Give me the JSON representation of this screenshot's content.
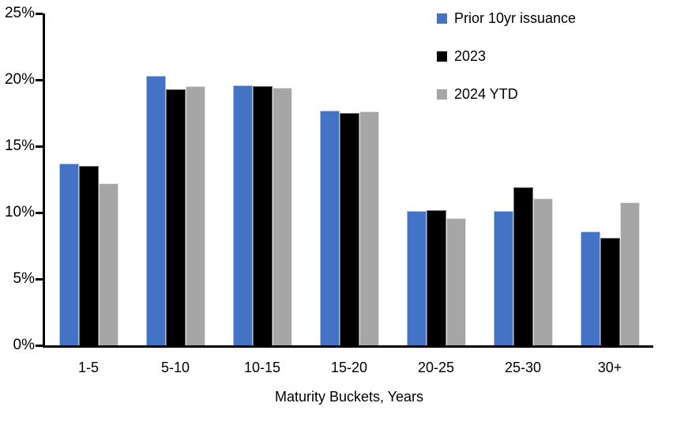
{
  "chart_data": {
    "type": "bar",
    "title": "",
    "xlabel": "Maturity Buckets, Years",
    "ylabel": "",
    "ylim": [
      0,
      25
    ],
    "yticks": [
      {
        "label": "0%",
        "value": 0
      },
      {
        "label": "5%",
        "value": 5
      },
      {
        "label": "10%",
        "value": 10
      },
      {
        "label": "15%",
        "value": 15
      },
      {
        "label": "20%",
        "value": 20
      },
      {
        "label": "25%",
        "value": 25
      }
    ],
    "grid": false,
    "legend_position": "top-right",
    "categories": [
      "1-5",
      "5-10",
      "10-15",
      "15-20",
      "20-25",
      "25-30",
      "30+"
    ],
    "series": [
      {
        "name": "Prior 10yr issuance",
        "color": "#4472C4",
        "border_color": "#ADC0E4",
        "values": [
          13.7,
          20.3,
          19.6,
          17.7,
          10.1,
          10.1,
          8.6
        ]
      },
      {
        "name": "2023",
        "color": "#000000",
        "border_color": "#6E6E6E",
        "values": [
          13.5,
          19.3,
          19.5,
          17.5,
          10.2,
          11.9,
          8.1
        ]
      },
      {
        "name": "2024 YTD",
        "color": "#A6A6A6",
        "border_color": "#E4E4E4",
        "values": [
          12.2,
          19.5,
          19.4,
          17.6,
          9.6,
          11.1,
          10.8
        ]
      }
    ]
  }
}
